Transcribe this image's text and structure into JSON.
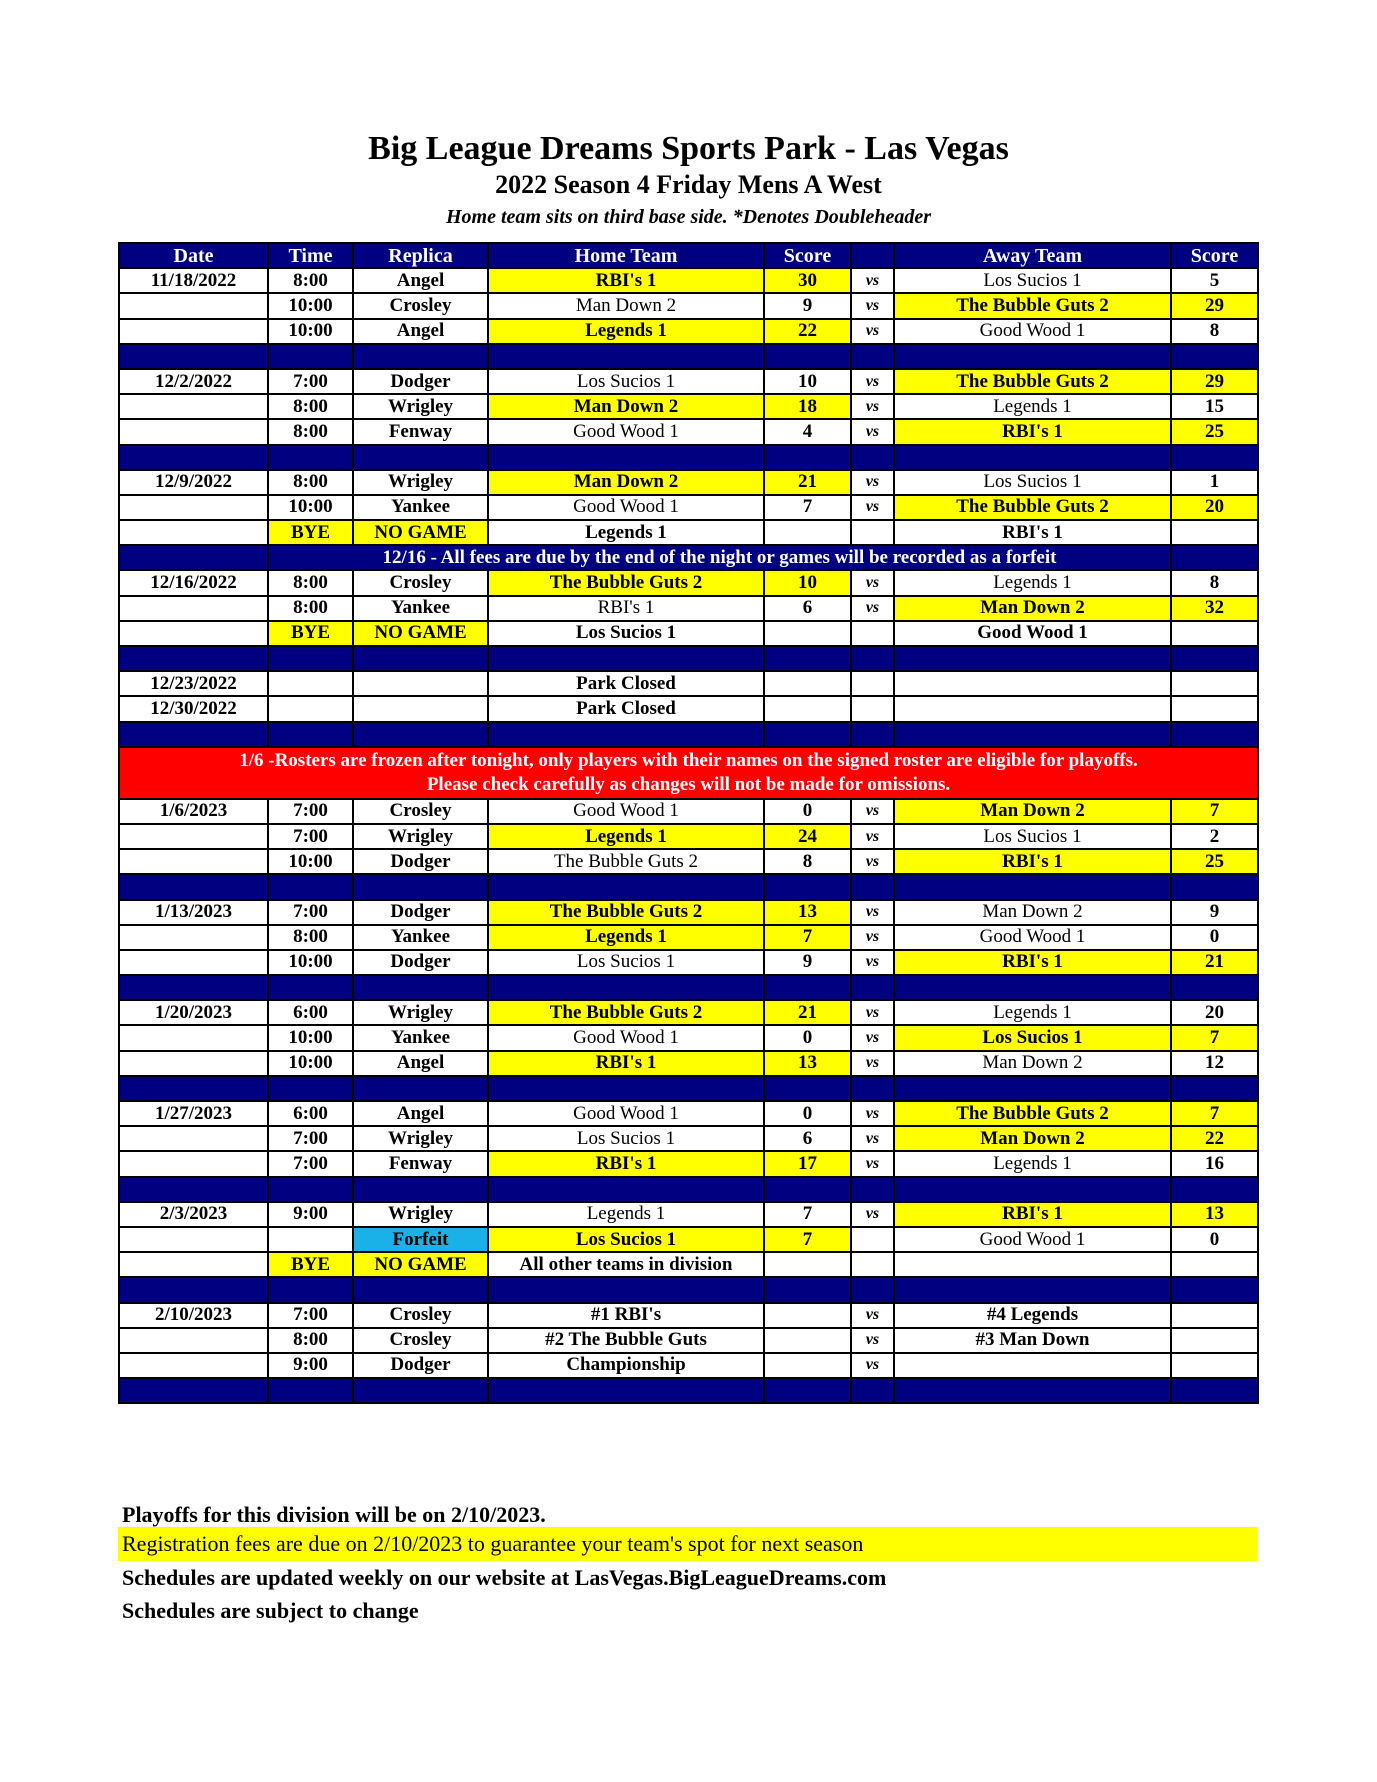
{
  "header": {
    "title": "Big League Dreams Sports Park - Las Vegas",
    "subtitle": "2022 Season 4 Friday Mens A West",
    "note": "Home team sits on third base side.  *Denotes Doubleheader"
  },
  "colors": {
    "navy": "#000080",
    "winner": "#ffff00",
    "notice_red": "#ff0000",
    "forfeit": "#1ab0e8"
  },
  "columns": [
    "Date",
    "Time",
    "Replica",
    "Home Team",
    "Score",
    "",
    "Away Team",
    "Score"
  ],
  "rows": [
    {
      "type": "game",
      "date": "11/18/2022",
      "time": "8:00",
      "replica": "Angel",
      "home": "RBI's 1",
      "hs": "30",
      "vs": "vs",
      "away": "Los Sucios 1",
      "as": "5",
      "winner": "home"
    },
    {
      "type": "game",
      "date": "",
      "time": "10:00",
      "replica": "Crosley",
      "home": "Man Down 2",
      "hs": "9",
      "vs": "vs",
      "away": "The Bubble Guts 2",
      "as": "29",
      "winner": "away"
    },
    {
      "type": "game",
      "date": "",
      "time": "10:00",
      "replica": "Angel",
      "home": "Legends 1",
      "hs": "22",
      "vs": "vs",
      "away": "Good Wood 1",
      "as": "8",
      "winner": "home"
    },
    {
      "type": "sep"
    },
    {
      "type": "game",
      "date": "12/2/2022",
      "time": "7:00",
      "replica": "Dodger",
      "home": "Los Sucios 1",
      "hs": "10",
      "vs": "vs",
      "away": "The Bubble Guts 2",
      "as": "29",
      "winner": "away"
    },
    {
      "type": "game",
      "date": "",
      "time": "8:00",
      "replica": "Wrigley",
      "home": "Man Down 2",
      "hs": "18",
      "vs": "vs",
      "away": "Legends 1",
      "as": "15",
      "winner": "home"
    },
    {
      "type": "game",
      "date": "",
      "time": "8:00",
      "replica": "Fenway",
      "home": "Good Wood 1",
      "hs": "4",
      "vs": "vs",
      "away": "RBI's 1",
      "as": "25",
      "winner": "away"
    },
    {
      "type": "sep"
    },
    {
      "type": "game",
      "date": "12/9/2022",
      "time": "8:00",
      "replica": "Wrigley",
      "home": "Man Down 2",
      "hs": "21",
      "vs": "vs",
      "away": "Los Sucios 1",
      "as": "1",
      "winner": "home"
    },
    {
      "type": "game",
      "date": "",
      "time": "10:00",
      "replica": "Yankee",
      "home": "Good Wood 1",
      "hs": "7",
      "vs": "vs",
      "away": "The Bubble Guts 2",
      "as": "20",
      "winner": "away"
    },
    {
      "type": "game",
      "date": "",
      "time": "BYE",
      "replica": "NO GAME",
      "home": "Legends 1",
      "hs": "",
      "vs": "",
      "away": "RBI's 1",
      "as": "",
      "bye": true
    },
    {
      "type": "notice",
      "text": "12/16 - All fees are due by the end of the night or games will be recorded as a forfeit"
    },
    {
      "type": "game",
      "date": "12/16/2022",
      "time": "8:00",
      "replica": "Crosley",
      "home": "The Bubble Guts 2",
      "hs": "10",
      "vs": "vs",
      "away": "Legends 1",
      "as": "8",
      "winner": "home"
    },
    {
      "type": "game",
      "date": "",
      "time": "8:00",
      "replica": "Yankee",
      "home": "RBI's 1",
      "hs": "6",
      "vs": "vs",
      "away": "Man Down 2",
      "as": "32",
      "winner": "away"
    },
    {
      "type": "game",
      "date": "",
      "time": "BYE",
      "replica": "NO GAME",
      "home": "Los Sucios 1",
      "hs": "",
      "vs": "",
      "away": "Good Wood 1",
      "as": "",
      "bye": true
    },
    {
      "type": "sep"
    },
    {
      "type": "game",
      "date": "12/23/2022",
      "time": "",
      "replica": "",
      "home": "Park Closed",
      "hs": "",
      "vs": "",
      "away": "",
      "as": "",
      "bold": true
    },
    {
      "type": "game",
      "date": "12/30/2022",
      "time": "",
      "replica": "",
      "home": "Park Closed",
      "hs": "",
      "vs": "",
      "away": "",
      "as": "",
      "bold": true
    },
    {
      "type": "sep"
    },
    {
      "type": "red",
      "lines": [
        "1/6 -Rosters are frozen after tonight, only players with their names on the signed roster are eligible for playoffs.",
        "Please check carefully as changes will not be made for omissions."
      ]
    },
    {
      "type": "game",
      "date": "1/6/2023",
      "time": "7:00",
      "replica": "Crosley",
      "home": "Good Wood 1",
      "hs": "0",
      "vs": "vs",
      "away": "Man Down 2",
      "as": "7",
      "winner": "away"
    },
    {
      "type": "game",
      "date": "",
      "time": "7:00",
      "replica": "Wrigley",
      "home": "Legends 1",
      "hs": "24",
      "vs": "vs",
      "away": "Los Sucios 1",
      "as": "2",
      "winner": "home"
    },
    {
      "type": "game",
      "date": "",
      "time": "10:00",
      "replica": "Dodger",
      "home": "The Bubble Guts 2",
      "hs": "8",
      "vs": "vs",
      "away": "RBI's 1",
      "as": "25",
      "winner": "away"
    },
    {
      "type": "sep"
    },
    {
      "type": "game",
      "date": "1/13/2023",
      "time": "7:00",
      "replica": "Dodger",
      "home": "The Bubble Guts 2",
      "hs": "13",
      "vs": "vs",
      "away": "Man Down 2",
      "as": "9",
      "winner": "home"
    },
    {
      "type": "game",
      "date": "",
      "time": "8:00",
      "replica": "Yankee",
      "home": "Legends 1",
      "hs": "7",
      "vs": "vs",
      "away": "Good Wood 1",
      "as": "0",
      "winner": "home"
    },
    {
      "type": "game",
      "date": "",
      "time": "10:00",
      "replica": "Dodger",
      "home": "Los Sucios 1",
      "hs": "9",
      "vs": "vs",
      "away": "RBI's 1",
      "as": "21",
      "winner": "away"
    },
    {
      "type": "sep"
    },
    {
      "type": "game",
      "date": "1/20/2023",
      "time": "6:00",
      "replica": "Wrigley",
      "home": "The Bubble Guts 2",
      "hs": "21",
      "vs": "vs",
      "away": "Legends 1",
      "as": "20",
      "winner": "home"
    },
    {
      "type": "game",
      "date": "",
      "time": "10:00",
      "replica": "Yankee",
      "home": "Good Wood 1",
      "hs": "0",
      "vs": "vs",
      "away": "Los Sucios 1",
      "as": "7",
      "winner": "away"
    },
    {
      "type": "game",
      "date": "",
      "time": "10:00",
      "replica": "Angel",
      "home": "RBI's 1",
      "hs": "13",
      "vs": "vs",
      "away": "Man Down 2",
      "as": "12",
      "winner": "home"
    },
    {
      "type": "sep"
    },
    {
      "type": "game",
      "date": "1/27/2023",
      "time": "6:00",
      "replica": "Angel",
      "home": "Good Wood 1",
      "hs": "0",
      "vs": "vs",
      "away": "The Bubble Guts 2",
      "as": "7",
      "winner": "away"
    },
    {
      "type": "game",
      "date": "",
      "time": "7:00",
      "replica": "Wrigley",
      "home": "Los Sucios 1",
      "hs": "6",
      "vs": "vs",
      "away": "Man Down 2",
      "as": "22",
      "winner": "away"
    },
    {
      "type": "game",
      "date": "",
      "time": "7:00",
      "replica": "Fenway",
      "home": "RBI's 1",
      "hs": "17",
      "vs": "vs",
      "away": "Legends 1",
      "as": "16",
      "winner": "home"
    },
    {
      "type": "sep"
    },
    {
      "type": "game",
      "date": "2/3/2023",
      "time": "9:00",
      "replica": "Wrigley",
      "home": "Legends 1",
      "hs": "7",
      "vs": "vs",
      "away": "RBI's 1",
      "as": "13",
      "winner": "away"
    },
    {
      "type": "game",
      "date": "",
      "time": "",
      "replica": "Forfeit",
      "home": "Los Sucios 1",
      "hs": "7",
      "vs": "",
      "away": "Good Wood 1",
      "as": "0",
      "winner": "home",
      "forfeit": true
    },
    {
      "type": "game",
      "date": "",
      "time": "BYE",
      "replica": "NO GAME",
      "home": "All other teams in division",
      "hs": "",
      "vs": "",
      "away": "",
      "as": "",
      "bye": true
    },
    {
      "type": "sep"
    },
    {
      "type": "game",
      "date": "2/10/2023",
      "time": "7:00",
      "replica": "Crosley",
      "home": "#1 RBI's",
      "hs": "",
      "vs": "vs",
      "away": "#4 Legends",
      "as": "",
      "bold": true
    },
    {
      "type": "game",
      "date": "",
      "time": "8:00",
      "replica": "Crosley",
      "home": "#2 The Bubble Guts",
      "hs": "",
      "vs": "vs",
      "away": "#3 Man Down",
      "as": "",
      "bold": true
    },
    {
      "type": "game",
      "date": "",
      "time": "9:00",
      "replica": "Dodger",
      "home": "Championship",
      "hs": "",
      "vs": "vs",
      "away": "",
      "as": "",
      "bold": true
    },
    {
      "type": "sep"
    }
  ],
  "footer": {
    "playoffs": "Playoffs for this division will be on 2/10/2023.",
    "registration": "Registration fees are due on 2/10/2023 to guarantee your team's spot for next season",
    "website": "Schedules are updated weekly on our website at LasVegas.BigLeagueDreams.com",
    "subject": "Schedules are subject to change"
  }
}
